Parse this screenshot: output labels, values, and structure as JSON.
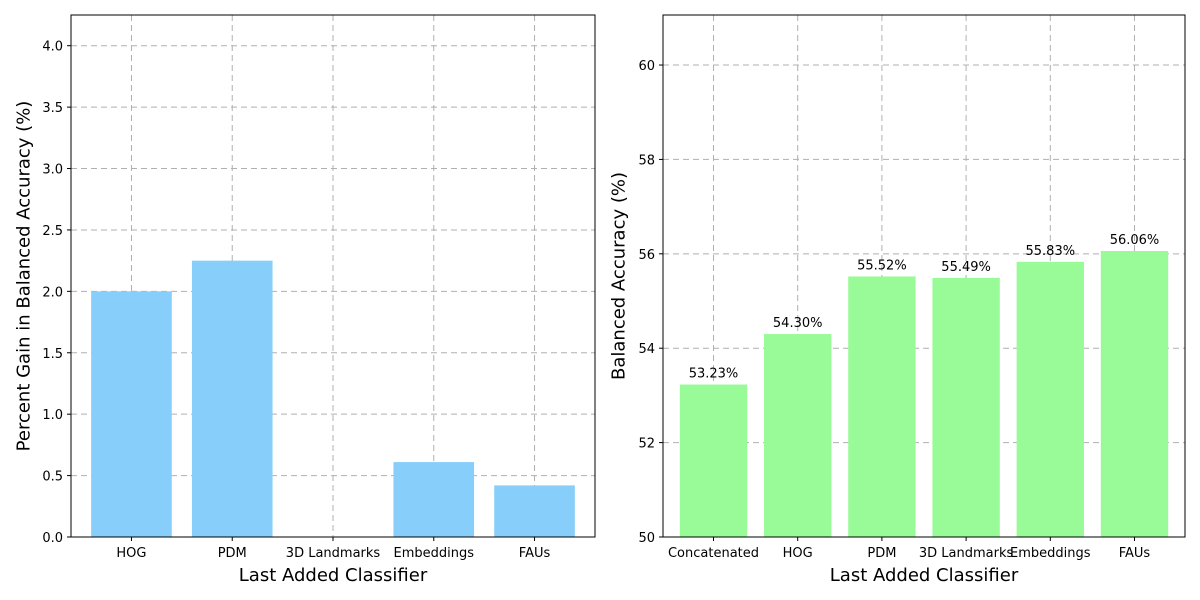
{
  "chart_data": [
    {
      "type": "bar",
      "categories": [
        "HOG",
        "PDM",
        "3D Landmarks",
        "Embeddings",
        "FAUs"
      ],
      "values": [
        2.0,
        2.25,
        0.0,
        0.61,
        0.42
      ],
      "title": "",
      "xlabel": "Last Added Classifier",
      "ylabel": "Percent Gain in Balanced Accuracy (%)",
      "ylim": [
        0,
        4.25
      ],
      "yticks": [
        "0.0",
        "0.5",
        "1.0",
        "1.5",
        "2.0",
        "2.5",
        "3.0",
        "3.5",
        "4.0"
      ],
      "data_labels": [],
      "grid": true,
      "bar_color": "#87cefa"
    },
    {
      "type": "bar",
      "categories": [
        "Concatenated",
        "HOG",
        "PDM",
        "3D Landmarks",
        "Embeddings",
        "FAUs"
      ],
      "values": [
        53.23,
        54.3,
        55.52,
        55.49,
        55.83,
        56.06
      ],
      "title": "",
      "xlabel": "Last Added Classifier",
      "ylabel": "Balanced Accuracy (%)",
      "ylim": [
        50,
        61.06
      ],
      "yticks": [
        "50",
        "52",
        "54",
        "56",
        "58",
        "60"
      ],
      "data_labels": [
        "53.23%",
        "54.30%",
        "55.52%",
        "55.49%",
        "55.83%",
        "56.06%"
      ],
      "grid": true,
      "bar_color": "#98fb98"
    }
  ]
}
